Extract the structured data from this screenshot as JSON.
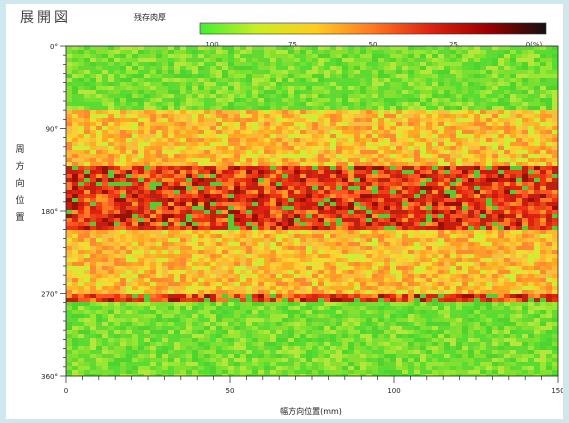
{
  "chart_data": {
    "type": "heatmap",
    "title": "展開図",
    "xlabel": "幅方向位置(mm)",
    "ylabel": "周方向位置",
    "x_range": [
      0,
      150
    ],
    "y_range": [
      0,
      360
    ],
    "x_ticks": [
      "0",
      "50",
      "100",
      "150"
    ],
    "y_ticks": [
      "0°",
      "90°",
      "180°",
      "270°",
      "360°"
    ],
    "legend": {
      "title": "残存肉厚",
      "ticks": [
        "100",
        "75",
        "50",
        "25",
        "0(%)"
      ],
      "colors": [
        "#44ee33",
        "#ccee22",
        "#ffcc22",
        "#ff7722",
        "#dd2211",
        "#990000",
        "#111111"
      ]
    },
    "bands": [
      {
        "y_from": 0,
        "y_to": 70,
        "level": "low"
      },
      {
        "y_from": 70,
        "y_to": 130,
        "level": "medium"
      },
      {
        "y_from": 130,
        "y_to": 200,
        "level": "high"
      },
      {
        "y_from": 200,
        "y_to": 245,
        "level": "medium"
      },
      {
        "y_from": 245,
        "y_to": 270,
        "level": "medium"
      },
      {
        "y_from": 270,
        "y_to": 280,
        "level": "high"
      },
      {
        "y_from": 280,
        "y_to": 360,
        "level": "low"
      }
    ]
  }
}
